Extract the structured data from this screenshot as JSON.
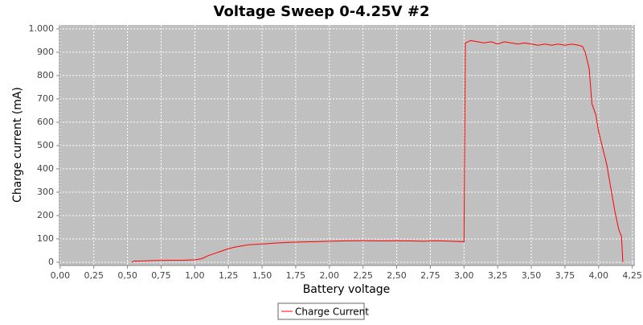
{
  "chart_data": {
    "type": "line",
    "title": "Voltage Sweep 0-4.25V #2",
    "xlabel": "Battery voltage",
    "ylabel": "Charge current (mA)",
    "xlim": [
      -0.005,
      4.27
    ],
    "ylim": [
      -14,
      1017
    ],
    "grid": true,
    "legend": "bottom",
    "xticks": [
      {
        "value": 0,
        "label": "0,00"
      },
      {
        "value": 0.25,
        "label": "0,25"
      },
      {
        "value": 0.5,
        "label": "0,50"
      },
      {
        "value": 0.75,
        "label": "0,75"
      },
      {
        "value": 1,
        "label": "1,00"
      },
      {
        "value": 1.25,
        "label": "1,25"
      },
      {
        "value": 1.5,
        "label": "1,50"
      },
      {
        "value": 1.75,
        "label": "1,75"
      },
      {
        "value": 2,
        "label": "2,00"
      },
      {
        "value": 2.25,
        "label": "2,25"
      },
      {
        "value": 2.5,
        "label": "2,50"
      },
      {
        "value": 2.75,
        "label": "2,75"
      },
      {
        "value": 3,
        "label": "3,00"
      },
      {
        "value": 3.25,
        "label": "3,25"
      },
      {
        "value": 3.5,
        "label": "3,50"
      },
      {
        "value": 3.75,
        "label": "3,75"
      },
      {
        "value": 4,
        "label": "4,00"
      },
      {
        "value": 4.25,
        "label": "4,25"
      }
    ],
    "yticks": [
      0,
      100,
      200,
      300,
      400,
      500,
      600,
      700,
      800,
      900,
      {
        "value": 1000,
        "label": "1.000"
      }
    ],
    "x": [
      0.53,
      0.55,
      0.6,
      0.7,
      0.8,
      0.9,
      1.0,
      1.05,
      1.1,
      1.15,
      1.2,
      1.25,
      1.3,
      1.35,
      1.4,
      1.5,
      1.6,
      1.7,
      1.8,
      1.9,
      2.0,
      2.1,
      2.2,
      2.3,
      2.4,
      2.5,
      2.6,
      2.7,
      2.8,
      2.9,
      3.0,
      3.01,
      3.05,
      3.1,
      3.15,
      3.2,
      3.25,
      3.3,
      3.35,
      3.4,
      3.45,
      3.5,
      3.55,
      3.6,
      3.65,
      3.7,
      3.75,
      3.8,
      3.85,
      3.88,
      3.9,
      3.93,
      3.95,
      3.98,
      4.0,
      4.03,
      4.06,
      4.09,
      4.12,
      4.15,
      4.17,
      4.18
    ],
    "series": [
      {
        "name": "Charge Current",
        "color": "#ff0000",
        "values": [
          0,
          5,
          5,
          7,
          8,
          8,
          10,
          15,
          28,
          38,
          48,
          58,
          65,
          70,
          75,
          78,
          82,
          85,
          87,
          88,
          90,
          91,
          92,
          92,
          91,
          92,
          91,
          90,
          92,
          90,
          88,
          940,
          950,
          945,
          940,
          945,
          935,
          945,
          940,
          935,
          940,
          935,
          930,
          935,
          930,
          935,
          930,
          935,
          930,
          925,
          900,
          830,
          680,
          630,
          560,
          490,
          420,
          320,
          220,
          140,
          110,
          0
        ]
      }
    ]
  }
}
